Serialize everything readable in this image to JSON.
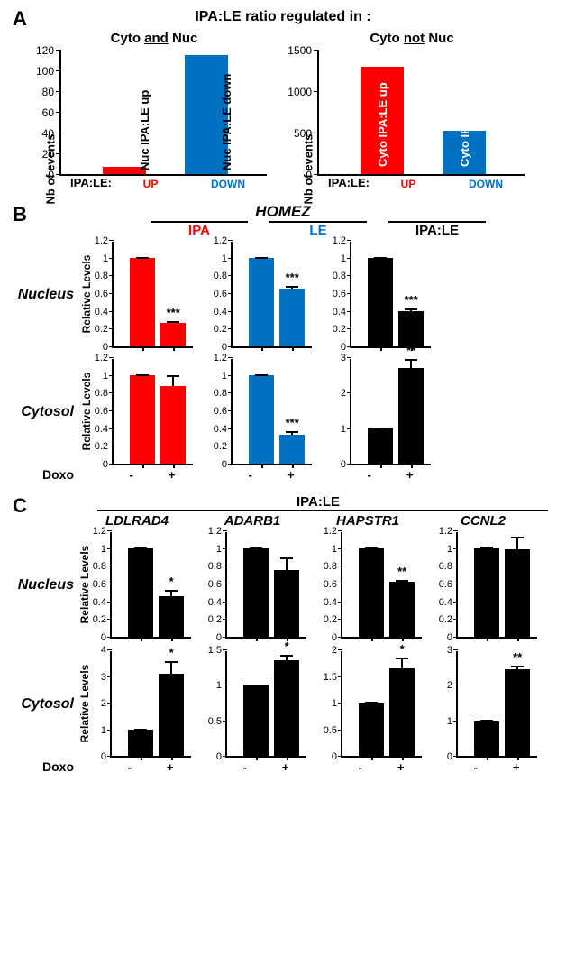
{
  "colors": {
    "red": "#ff0000",
    "blue": "#0070c0",
    "black": "#000000",
    "white": "#ffffff"
  },
  "panelA": {
    "letter": "A",
    "main_title": "IPA:LE ratio regulated in :",
    "ylabel": "Nb of events",
    "xaxis_prefix": "IPA:LE:",
    "xcat_up": "UP",
    "xcat_down": "DOWN",
    "left": {
      "subtitle_pre": "Cyto ",
      "subtitle_u": "and",
      "subtitle_post": " Nuc",
      "ylim": [
        0,
        120
      ],
      "ytick_step": 20,
      "bars": [
        {
          "label": "Nuc IPA:LE up",
          "value": 7,
          "color": "#ff0000"
        },
        {
          "label": "Nuc IPA:LE down",
          "value": 115,
          "color": "#0070c0"
        }
      ]
    },
    "right": {
      "subtitle_pre": "Cyto ",
      "subtitle_u": "not",
      "subtitle_post": " Nuc",
      "ylim": [
        0,
        1500
      ],
      "ytick_step": 500,
      "bars": [
        {
          "label": "Cyto IPA:LE up",
          "value": 1290,
          "color": "#ff0000"
        },
        {
          "label": "Cyto IPA:LE down",
          "value": 520,
          "color": "#0070c0"
        }
      ]
    }
  },
  "panelB": {
    "letter": "B",
    "gene": "HOMEZ",
    "ylabel": "Relative Levels",
    "col_ipa": "IPA",
    "col_le": "LE",
    "col_ratio": "IPA:LE",
    "doxo_label": "Doxo",
    "x_minus": "-",
    "x_plus": "+",
    "rows": {
      "nucleus": {
        "label": "Nucleus",
        "ipa": {
          "ylim": [
            0,
            1.2
          ],
          "ystep": 0.2,
          "color": "#ff0000",
          "bars": [
            {
              "v": 1.0,
              "e": 0.01
            },
            {
              "v": 0.26,
              "e": 0.02,
              "sig": "***"
            }
          ]
        },
        "le": {
          "ylim": [
            0,
            1.2
          ],
          "ystep": 0.2,
          "color": "#0070c0",
          "bars": [
            {
              "v": 1.0,
              "e": 0.01
            },
            {
              "v": 0.65,
              "e": 0.03,
              "sig": "***"
            }
          ]
        },
        "ratio": {
          "ylim": [
            0,
            1.2
          ],
          "ystep": 0.2,
          "color": "#000000",
          "bars": [
            {
              "v": 1.0,
              "e": 0.01
            },
            {
              "v": 0.4,
              "e": 0.03,
              "sig": "***"
            }
          ]
        }
      },
      "cytosol": {
        "label": "Cytosol",
        "ipa": {
          "ylim": [
            0,
            1.2
          ],
          "ystep": 0.2,
          "color": "#ff0000",
          "bars": [
            {
              "v": 1.0,
              "e": 0.01
            },
            {
              "v": 0.87,
              "e": 0.13
            }
          ]
        },
        "le": {
          "ylim": [
            0,
            1.2
          ],
          "ystep": 0.2,
          "color": "#0070c0",
          "bars": [
            {
              "v": 1.0,
              "e": 0.01
            },
            {
              "v": 0.33,
              "e": 0.04,
              "sig": "***"
            }
          ]
        },
        "ratio": {
          "ylim": [
            0,
            3
          ],
          "ystep": 1,
          "color": "#000000",
          "bars": [
            {
              "v": 1.0,
              "e": 0.02
            },
            {
              "v": 2.7,
              "e": 0.25,
              "sig": "**"
            }
          ]
        }
      }
    }
  },
  "panelC": {
    "letter": "C",
    "header": "IPA:LE",
    "ylabel": "Relative Levels",
    "doxo_label": "Doxo",
    "x_minus": "-",
    "x_plus": "+",
    "genes": [
      "LDLRAD4",
      "ADARB1",
      "HAPSTR1",
      "CCNL2"
    ],
    "rows": {
      "nucleus": {
        "label": "Nucleus",
        "charts": [
          {
            "ylim": [
              0,
              1.2
            ],
            "ystep": 0.2,
            "color": "#000000",
            "bars": [
              {
                "v": 1.0,
                "e": 0.01
              },
              {
                "v": 0.46,
                "e": 0.07,
                "sig": "*"
              }
            ]
          },
          {
            "ylim": [
              0,
              1.2
            ],
            "ystep": 0.2,
            "color": "#000000",
            "bars": [
              {
                "v": 1.0,
                "e": 0.01
              },
              {
                "v": 0.75,
                "e": 0.14
              }
            ]
          },
          {
            "ylim": [
              0,
              1.2
            ],
            "ystep": 0.2,
            "color": "#000000",
            "bars": [
              {
                "v": 1.0,
                "e": 0.01
              },
              {
                "v": 0.62,
                "e": 0.02,
                "sig": "**"
              }
            ]
          },
          {
            "ylim": [
              0,
              1.2
            ],
            "ystep": 0.2,
            "color": "#000000",
            "bars": [
              {
                "v": 1.0,
                "e": 0.02
              },
              {
                "v": 0.99,
                "e": 0.14
              }
            ]
          }
        ]
      },
      "cytosol": {
        "label": "Cytosol",
        "charts": [
          {
            "ylim": [
              0,
              4
            ],
            "ystep": 1,
            "color": "#000000",
            "bars": [
              {
                "v": 1.0,
                "e": 0.02
              },
              {
                "v": 3.1,
                "e": 0.45,
                "sig": "*"
              }
            ]
          },
          {
            "ylim": [
              0,
              1.5
            ],
            "ystep": 0.5,
            "color": "#000000",
            "bars": [
              {
                "v": 1.0,
                "e": 0.01
              },
              {
                "v": 1.35,
                "e": 0.07,
                "sig": "*"
              }
            ]
          },
          {
            "ylim": [
              0,
              2.0
            ],
            "ystep": 0.5,
            "color": "#000000",
            "bars": [
              {
                "v": 1.0,
                "e": 0.02
              },
              {
                "v": 1.65,
                "e": 0.2,
                "sig": "*"
              }
            ]
          },
          {
            "ylim": [
              0,
              3
            ],
            "ystep": 1,
            "color": "#000000",
            "bars": [
              {
                "v": 1.0,
                "e": 0.02
              },
              {
                "v": 2.45,
                "e": 0.1,
                "sig": "**"
              }
            ]
          }
        ]
      }
    }
  }
}
